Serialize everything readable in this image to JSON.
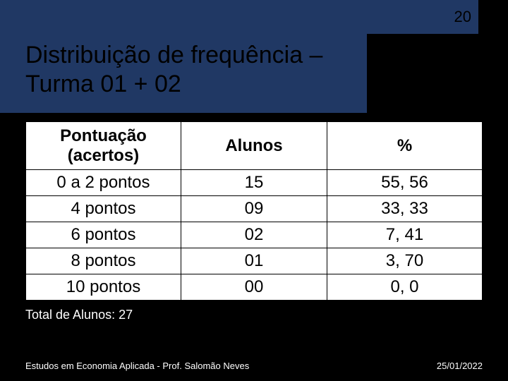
{
  "page_number": "20",
  "title_line1": "Distribuição de frequência –",
  "title_line2": "Turma 01 + 02",
  "table": {
    "columns": [
      "Pontuação (acertos)",
      "Alunos",
      "%"
    ],
    "rows": [
      [
        "0 a 2 pontos",
        "15",
        "55, 56"
      ],
      [
        "4 pontos",
        "09",
        "33, 33"
      ],
      [
        "6 pontos",
        "02",
        "7, 41"
      ],
      [
        "8 pontos",
        "01",
        "3, 70"
      ],
      [
        "10 pontos",
        "00",
        "0, 0"
      ]
    ],
    "header_fontsize": 24,
    "cell_fontsize": 24,
    "border_color": "#000000",
    "background_color": "#ffffff",
    "text_color": "#000000",
    "col_widths_pct": [
      34,
      32,
      34
    ]
  },
  "subtotal_text": "Total de Alunos: 27",
  "footer_left": "Estudos em Economia Aplicada - Prof. Salomão Neves",
  "footer_right": "25/01/2022",
  "colors": {
    "slide_background": "#000000",
    "accent_box": "#203864",
    "text_light": "#ffffff",
    "text_dark": "#000000"
  },
  "typography": {
    "title_fontsize": 34,
    "subtotal_fontsize": 18,
    "footer_fontsize": 13,
    "page_number_fontsize": 22,
    "font_family": "Arial"
  }
}
